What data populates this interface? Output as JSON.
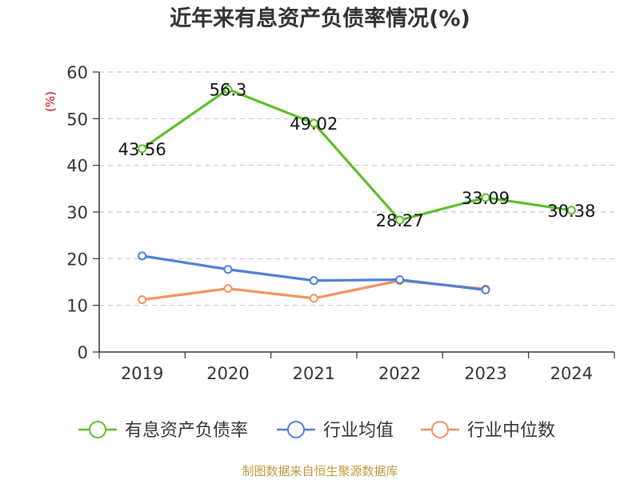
{
  "chart_data": {
    "type": "line",
    "title": "近年来有息资产负债率情况(%)",
    "ylabel": "(%)",
    "categories": [
      "2019",
      "2020",
      "2021",
      "2022",
      "2023",
      "2024"
    ],
    "ylim": [
      0,
      60
    ],
    "yticks": [
      0,
      10,
      20,
      30,
      40,
      50,
      60
    ],
    "grid": true,
    "legend": "bottom",
    "series": [
      {
        "name": "有息资产负债率",
        "color": "#5cbf2a",
        "values": [
          43.56,
          56.3,
          49.02,
          28.27,
          33.09,
          30.38
        ],
        "labels": [
          "43.56",
          "56.3",
          "49.02",
          "28.27",
          "33.09",
          "30.38"
        ]
      },
      {
        "name": "行业均值",
        "color": "#4e7fd6",
        "values": [
          20.6,
          17.7,
          15.3,
          15.5,
          13.3,
          null
        ]
      },
      {
        "name": "行业中位数",
        "color": "#f3925d",
        "values": [
          11.2,
          13.6,
          11.5,
          15.3,
          13.5,
          null
        ]
      }
    ]
  },
  "source": "制图数据来自恒生聚源数据库"
}
